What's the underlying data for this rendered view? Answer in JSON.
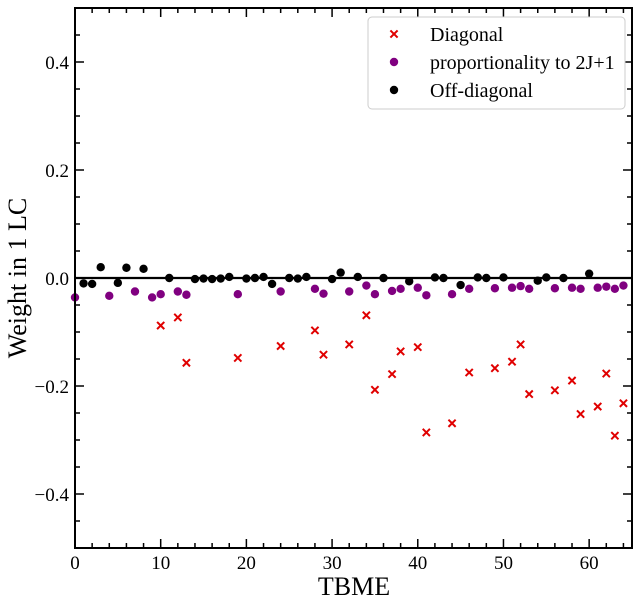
{
  "chart_data": {
    "type": "scatter",
    "title": "",
    "xlabel": "TBME",
    "ylabel": "Weight in 1 LC",
    "xlim": [
      0,
      65
    ],
    "ylim": [
      -0.5,
      0.5
    ],
    "xticks": [
      0,
      10,
      20,
      30,
      40,
      50,
      60
    ],
    "xtick_labels": [
      "0",
      "10",
      "20",
      "30",
      "40",
      "50",
      "60"
    ],
    "yticks": [
      -0.4,
      -0.2,
      0.0,
      0.2,
      0.4
    ],
    "ytick_labels": [
      "−0.4",
      "−0.2",
      "0.0",
      "0.2",
      "0.4"
    ],
    "grid": false,
    "legend_position": "top-right",
    "reference_line_y": 0.0,
    "series": [
      {
        "name": "Diagonal",
        "marker": "x",
        "color": "#e00000",
        "points": [
          [
            10,
            -0.088
          ],
          [
            12,
            -0.073
          ],
          [
            13,
            -0.157
          ],
          [
            19,
            -0.148
          ],
          [
            24,
            -0.126
          ],
          [
            28,
            -0.097
          ],
          [
            29,
            -0.142
          ],
          [
            32,
            -0.123
          ],
          [
            34,
            -0.069
          ],
          [
            35,
            -0.207
          ],
          [
            37,
            -0.178
          ],
          [
            38,
            -0.136
          ],
          [
            40,
            -0.128
          ],
          [
            41,
            -0.286
          ],
          [
            44,
            -0.269
          ],
          [
            46,
            -0.175
          ],
          [
            49,
            -0.167
          ],
          [
            51,
            -0.155
          ],
          [
            52,
            -0.123
          ],
          [
            53,
            -0.215
          ],
          [
            56,
            -0.208
          ],
          [
            58,
            -0.19
          ],
          [
            59,
            -0.252
          ],
          [
            61,
            -0.238
          ],
          [
            62,
            -0.177
          ],
          [
            63,
            -0.292
          ],
          [
            64,
            -0.232
          ]
        ]
      },
      {
        "name": "proportionality to 2J+1",
        "marker": "circle",
        "color": "#800080",
        "points": [
          [
            0,
            -0.036
          ],
          [
            4,
            -0.033
          ],
          [
            7,
            -0.025
          ],
          [
            9,
            -0.036
          ],
          [
            10,
            -0.03
          ],
          [
            12,
            -0.025
          ],
          [
            13,
            -0.031
          ],
          [
            19,
            -0.03
          ],
          [
            24,
            -0.025
          ],
          [
            28,
            -0.02
          ],
          [
            29,
            -0.029
          ],
          [
            32,
            -0.025
          ],
          [
            34,
            -0.014
          ],
          [
            35,
            -0.03
          ],
          [
            37,
            -0.024
          ],
          [
            38,
            -0.02
          ],
          [
            40,
            -0.018
          ],
          [
            41,
            -0.032
          ],
          [
            44,
            -0.03
          ],
          [
            46,
            -0.02
          ],
          [
            49,
            -0.019
          ],
          [
            51,
            -0.018
          ],
          [
            52,
            -0.015
          ],
          [
            53,
            -0.02
          ],
          [
            56,
            -0.019
          ],
          [
            58,
            -0.018
          ],
          [
            59,
            -0.02
          ],
          [
            61,
            -0.018
          ],
          [
            62,
            -0.016
          ],
          [
            63,
            -0.02
          ],
          [
            64,
            -0.014
          ]
        ]
      },
      {
        "name": "Off-diagonal",
        "marker": "circle",
        "color": "#000000",
        "points": [
          [
            1,
            -0.01
          ],
          [
            2,
            -0.011
          ],
          [
            3,
            0.02
          ],
          [
            5,
            -0.009
          ],
          [
            6,
            0.019
          ],
          [
            8,
            0.017
          ],
          [
            11,
            0.0
          ],
          [
            14,
            -0.002
          ],
          [
            15,
            -0.001
          ],
          [
            16,
            -0.002
          ],
          [
            17,
            -0.001
          ],
          [
            18,
            0.002
          ],
          [
            20,
            -0.001
          ],
          [
            21,
            0.0
          ],
          [
            22,
            0.002
          ],
          [
            23,
            -0.011
          ],
          [
            25,
            0.0
          ],
          [
            26,
            -0.001
          ],
          [
            27,
            0.002
          ],
          [
            30,
            -0.002
          ],
          [
            31,
            0.01
          ],
          [
            33,
            0.002
          ],
          [
            36,
            0.0
          ],
          [
            39,
            -0.006
          ],
          [
            42,
            0.001
          ],
          [
            43,
            0.0
          ],
          [
            45,
            -0.013
          ],
          [
            47,
            0.001
          ],
          [
            48,
            0.0
          ],
          [
            50,
            0.001
          ],
          [
            54,
            -0.005
          ],
          [
            55,
            0.001
          ],
          [
            57,
            0.0
          ],
          [
            60,
            0.008
          ]
        ]
      }
    ]
  }
}
